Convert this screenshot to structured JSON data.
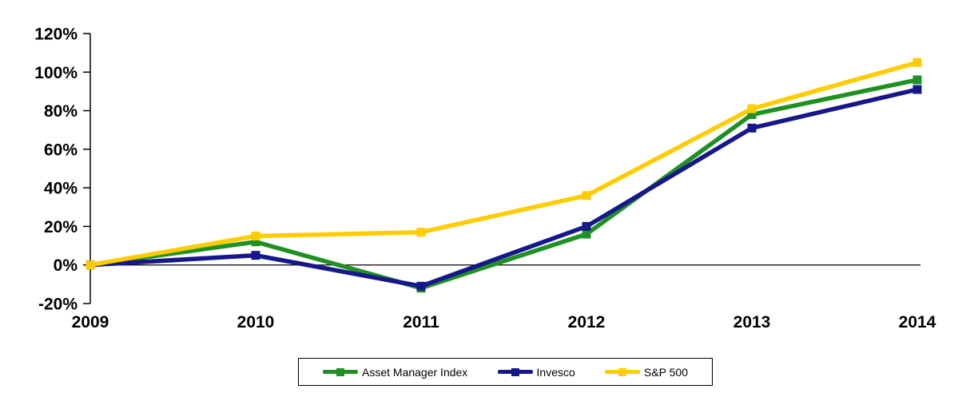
{
  "chart_data": {
    "type": "line",
    "title": "",
    "xlabel": "",
    "ylabel": "",
    "categories": [
      "2009",
      "2010",
      "2011",
      "2012",
      "2013",
      "2014"
    ],
    "series": [
      {
        "name": "Asset Manager Index",
        "color": "#1E9122",
        "values": [
          0,
          12,
          -12,
          16,
          78,
          96
        ]
      },
      {
        "name": "Invesco",
        "color": "#17178C",
        "values": [
          0,
          5,
          -11,
          20,
          71,
          91
        ]
      },
      {
        "name": "S&P 500",
        "color": "#FFCC00",
        "values": [
          0,
          15,
          17,
          36,
          81,
          105
        ]
      }
    ],
    "ylim": [
      -20,
      120
    ],
    "y_tick_step": 20,
    "y_tick_labels": [
      "120%",
      "100%",
      "80%",
      "60%",
      "40%",
      "20%",
      "0%",
      "-20%"
    ],
    "grid": false,
    "zero_line": true,
    "marker": "square",
    "legend_position": "bottom",
    "axis_color": "#000000",
    "background_color": "#ffffff"
  }
}
